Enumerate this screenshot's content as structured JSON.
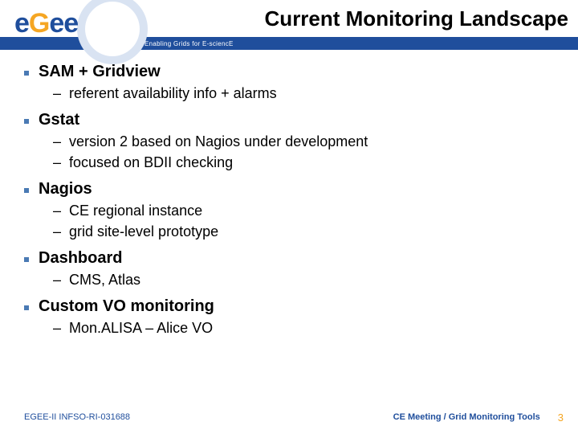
{
  "header": {
    "title": "Current Monitoring Landscape",
    "tagline": "Enabling Grids for E-sciencE",
    "logo_letters": {
      "e1": "e",
      "g": "G",
      "e2": "e",
      "e3": "e"
    }
  },
  "colors": {
    "brand_blue": "#1f4e9c",
    "brand_orange": "#f5a623",
    "bullet_blue": "#4a7ab4",
    "background": "#ffffff",
    "logo_ring": "#d9e3f2"
  },
  "typography": {
    "title_fontsize": 26,
    "l1_fontsize": 20,
    "l2_fontsize": 18,
    "footer_fontsize": 11,
    "tagline_fontsize": 8
  },
  "bullets": [
    {
      "label": "SAM + Gridview",
      "subs": [
        "referent availability info + alarms"
      ]
    },
    {
      "label": "Gstat",
      "subs": [
        "version 2 based on Nagios under development",
        "focused on BDII checking"
      ]
    },
    {
      "label": "Nagios",
      "subs": [
        "CE regional instance",
        "grid site-level prototype"
      ]
    },
    {
      "label": "Dashboard",
      "subs": [
        "CMS, Atlas"
      ]
    },
    {
      "label": "Custom VO monitoring",
      "subs": [
        "Mon.ALISA – Alice VO"
      ]
    }
  ],
  "footer": {
    "left": "EGEE-II INFSO-RI-031688",
    "right": "CE Meeting / Grid Monitoring Tools",
    "page": "3"
  }
}
